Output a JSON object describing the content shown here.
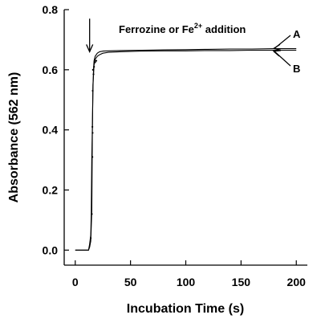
{
  "chart_data": {
    "type": "scatter",
    "title": "",
    "xlabel": "Incubation Time (s)",
    "ylabel": "Absorbance (562 nm)",
    "xlim": [
      -10,
      210
    ],
    "ylim": [
      -0.05,
      0.8
    ],
    "x_ticks": [
      0,
      50,
      100,
      150,
      200
    ],
    "y_ticks": [
      0.0,
      0.2,
      0.4,
      0.6,
      0.8
    ],
    "x_tick_labels": [
      "0",
      "50",
      "100",
      "150",
      "200"
    ],
    "y_tick_labels": [
      "0.0",
      "0.2",
      "0.4",
      "0.6",
      "0.8"
    ],
    "grid": false,
    "annotation": {
      "main": "Ferrozine or Fe",
      "superscript": "2+",
      "tail": " addition",
      "arrow_x": 13,
      "arrow_y_from": 0.77,
      "arrow_y_to": 0.66
    },
    "series": [
      {
        "name": "A",
        "points": [
          [
            0,
            0.0
          ],
          [
            2,
            0.0
          ],
          [
            4,
            0.0
          ],
          [
            6,
            0.0
          ],
          [
            8,
            0.0
          ],
          [
            10,
            0.0
          ],
          [
            12,
            0.0
          ],
          [
            13,
            0.02
          ],
          [
            14,
            0.05
          ],
          [
            14.5,
            0.12
          ],
          [
            15,
            0.31
          ],
          [
            15.5,
            0.41
          ],
          [
            16,
            0.53
          ],
          [
            16.5,
            0.6
          ],
          [
            17,
            0.63
          ],
          [
            18,
            0.645
          ],
          [
            20,
            0.655
          ],
          [
            22,
            0.66
          ],
          [
            25,
            0.662
          ],
          [
            30,
            0.663
          ],
          [
            40,
            0.664
          ],
          [
            60,
            0.665
          ],
          [
            80,
            0.666
          ],
          [
            100,
            0.667
          ],
          [
            120,
            0.668
          ],
          [
            140,
            0.669
          ],
          [
            160,
            0.669
          ],
          [
            180,
            0.67
          ],
          [
            200,
            0.67
          ]
        ]
      },
      {
        "name": "B",
        "points": [
          [
            0,
            0.0
          ],
          [
            2,
            0.0
          ],
          [
            4,
            0.0
          ],
          [
            6,
            0.0
          ],
          [
            8,
            0.0
          ],
          [
            10,
            0.0
          ],
          [
            12,
            0.0
          ],
          [
            13,
            0.01
          ],
          [
            14,
            0.03
          ],
          [
            15,
            0.13
          ],
          [
            15.5,
            0.39
          ],
          [
            16,
            0.55
          ],
          [
            16.5,
            0.58
          ],
          [
            17,
            0.615
          ],
          [
            18,
            0.635
          ],
          [
            20,
            0.645
          ],
          [
            22,
            0.65
          ],
          [
            25,
            0.655
          ],
          [
            30,
            0.658
          ],
          [
            40,
            0.66
          ],
          [
            60,
            0.662
          ],
          [
            80,
            0.663
          ],
          [
            100,
            0.663
          ],
          [
            120,
            0.664
          ],
          [
            140,
            0.664
          ],
          [
            160,
            0.665
          ],
          [
            180,
            0.665
          ],
          [
            200,
            0.665
          ]
        ]
      }
    ],
    "scatter_points": [
      [
        14,
        0.04
      ],
      [
        15,
        0.12
      ],
      [
        15.5,
        0.31
      ],
      [
        15.7,
        0.39
      ],
      [
        15.5,
        0.41
      ],
      [
        15.8,
        0.53
      ],
      [
        16,
        0.6
      ],
      [
        17,
        0.61
      ],
      [
        18,
        0.625
      ],
      [
        19,
        0.63
      ],
      [
        16.5,
        0.585
      ]
    ],
    "label_A": {
      "text": "A",
      "x": 178,
      "y": 0.668
    },
    "label_B": {
      "text": "B",
      "x": 178,
      "y": 0.664
    }
  }
}
